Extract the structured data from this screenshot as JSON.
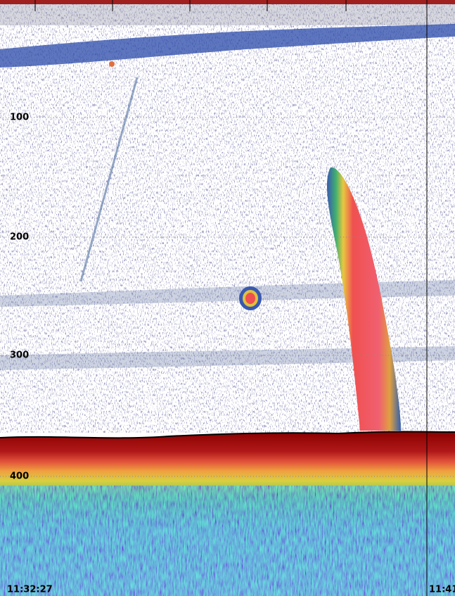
{
  "depth_labels": [
    "100",
    "200",
    "300",
    "400"
  ],
  "time_labels": [
    "11:32:27",
    "11:41"
  ]
}
